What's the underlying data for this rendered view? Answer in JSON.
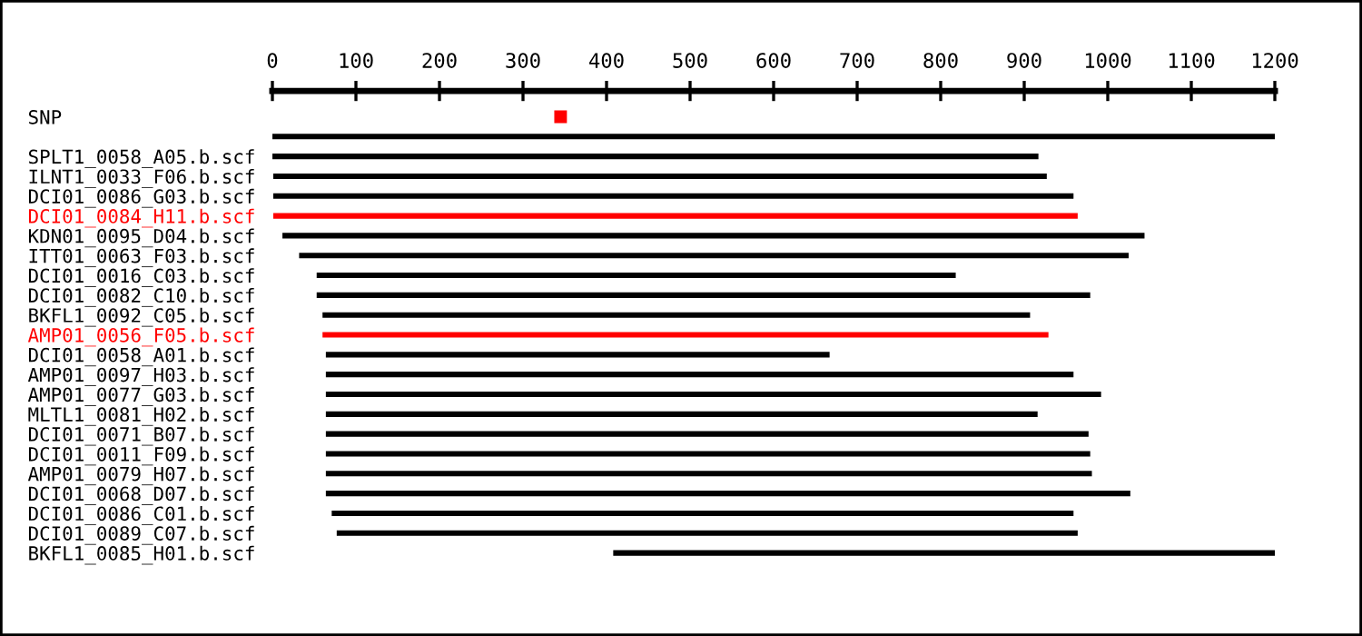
{
  "chart_data": {
    "type": "bar",
    "orientation": "horizontal",
    "categories": [
      "SNP",
      null,
      "SPLT1_0058_A05.b.scf",
      "ILNT1_0033_F06.b.scf",
      "DCI01_0086_G03.b.scf",
      "DCI01_0084_H11.b.scf",
      "KDN01_0095_D04.b.scf",
      "ITT01_0063_F03.b.scf",
      "DCI01_0016_C03.b.scf",
      "DCI01_0082_C10.b.scf",
      "BKFL1_0092_C05.b.scf",
      "AMP01_0056_F05.b.scf",
      "DCI01_0058_A01.b.scf",
      "AMP01_0097_H03.b.scf",
      "AMP01_0077_G03.b.scf",
      "MLTL1_0081_H02.b.scf",
      "DCI01_0071_B07.b.scf",
      "DCI01_0011_F09.b.scf",
      "AMP01_0079_H07.b.scf",
      "DCI01_0068_D07.b.scf",
      "DCI01_0086_C01.b.scf",
      "DCI01_0089_C07.b.scf",
      "BKFL1_0085_H01.b.scf"
    ],
    "series": [
      {
        "base": [
          null,
          0,
          0,
          1,
          1,
          1,
          12,
          32,
          53,
          53,
          60,
          60,
          64,
          64,
          64,
          64,
          64,
          64,
          64,
          64,
          71,
          77,
          408
        ],
        "values": [
          null,
          1200,
          917,
          926,
          958,
          963,
          1032,
          993,
          765,
          926,
          847,
          869,
          603,
          895,
          928,
          852,
          913,
          915,
          917,
          963,
          888,
          887,
          792
        ],
        "colors": [
          "#000000",
          "#000000",
          "#000000",
          "#000000",
          "#000000",
          "#ff0000",
          "#000000",
          "#000000",
          "#000000",
          "#000000",
          "#000000",
          "#ff0000",
          "#000000",
          "#000000",
          "#000000",
          "#000000",
          "#000000",
          "#000000",
          "#000000",
          "#000000",
          "#000000",
          "#000000",
          "#000000"
        ]
      },
      {
        "type": "scatter",
        "marker": "square",
        "color": "#ff0000",
        "values": [
          345,
          null,
          null,
          null,
          null,
          null,
          null,
          null,
          null,
          null,
          null,
          null,
          null,
          null,
          null,
          null,
          null,
          null,
          null,
          null,
          null,
          null,
          null
        ]
      }
    ],
    "xlim": [
      0,
      1200
    ],
    "xticks": [
      0,
      100,
      200,
      300,
      400,
      500,
      600,
      700,
      800,
      900,
      1000,
      1100,
      1200
    ],
    "grid": false,
    "legend": false
  }
}
